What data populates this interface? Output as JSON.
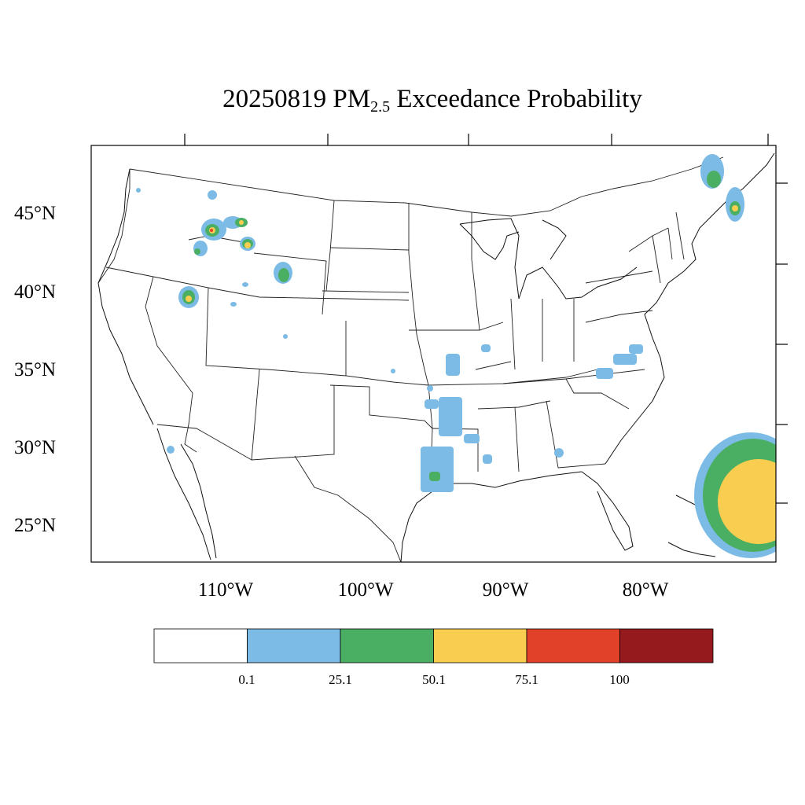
{
  "title": {
    "date": "20250819",
    "pm": "PM",
    "sub": "2.5",
    "suffix": "Exceedance Probability"
  },
  "lat_labels": [
    "45°N",
    "40°N",
    "35°N",
    "30°N",
    "25°N"
  ],
  "lon_labels": [
    "110°W",
    "100°W",
    "90°W",
    "80°W"
  ],
  "legend": {
    "bins": [
      {
        "color": "#ffffff"
      },
      {
        "color": "#7bbbe6"
      },
      {
        "color": "#4baf63"
      },
      {
        "color": "#f9ce50"
      },
      {
        "color": "#e24129"
      },
      {
        "color": "#951a1d"
      }
    ],
    "labels": [
      "0.1",
      "25.1",
      "50.1",
      "75.1",
      "100"
    ]
  },
  "colors": {
    "blue": "#7bbbe6",
    "green": "#4baf63",
    "yellow": "#f9ce50",
    "red": "#e24129",
    "darkred": "#951a1d"
  }
}
